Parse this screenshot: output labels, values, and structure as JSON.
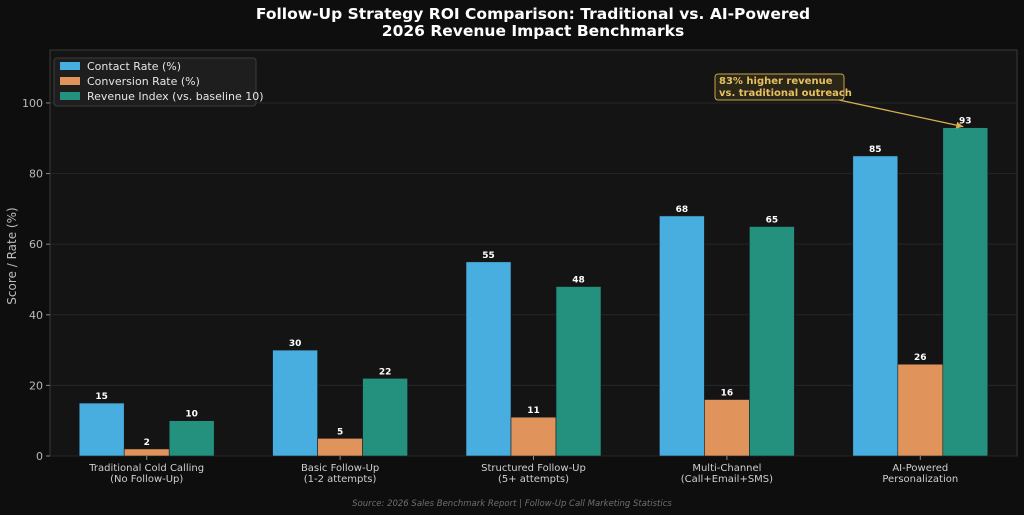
{
  "chart_data": {
    "type": "bar",
    "title": "Follow-Up Strategy ROI Comparison: Traditional vs. AI-Powered",
    "subtitle": "2026 Revenue Impact Benchmarks",
    "ylabel": "Score / Rate (%)",
    "xlabel": "",
    "ylim": [
      0,
      115
    ],
    "yticks": [
      0,
      20,
      40,
      60,
      80,
      100
    ],
    "grid": true,
    "legend_position": "top-left",
    "categories": [
      [
        "Traditional Cold Calling",
        "(No Follow-Up)"
      ],
      [
        "Basic Follow-Up",
        "(1-2 attempts)"
      ],
      [
        "Structured Follow-Up",
        "(5+ attempts)"
      ],
      [
        "Multi-Channel",
        "(Call+Email+SMS)"
      ],
      [
        "AI-Powered",
        "Personalization"
      ]
    ],
    "series": [
      {
        "name": "Contact Rate (%)",
        "color": "#48aee0",
        "values": [
          15,
          30,
          55,
          68,
          85
        ]
      },
      {
        "name": "Conversion Rate (%)",
        "color": "#e0935a",
        "values": [
          2,
          5,
          11,
          16,
          26
        ]
      },
      {
        "name": "Revenue Index (vs. baseline 10)",
        "color": "#24907e",
        "values": [
          10,
          22,
          48,
          65,
          93
        ]
      }
    ],
    "annotation": {
      "lines": [
        "83% higher revenue",
        "vs. traditional outreach"
      ],
      "target_category": 4,
      "target_series": 2
    },
    "source": "Source: 2026 Sales Benchmark Report | Follow-Up Call Marketing Statistics"
  }
}
